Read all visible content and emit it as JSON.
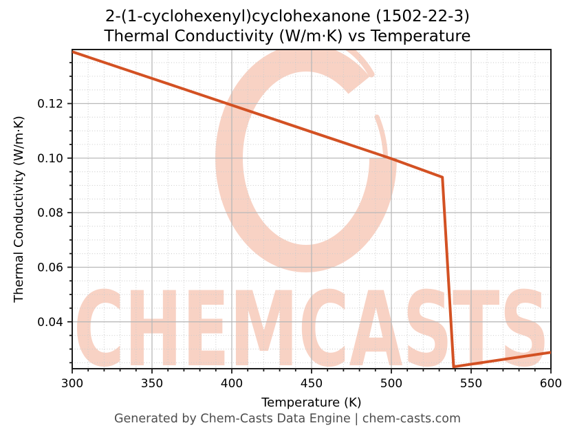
{
  "chart": {
    "title_line1": "2-(1-cyclohexenyl)cyclohexanone (1502-22-3)",
    "title_line2": "Thermal Conductivity (W/m·K) vs Temperature",
    "footer": "Generated by Chem-Casts Data Engine | chem-casts.com",
    "watermark_text": "CHEMCASTS"
  },
  "chart_data": {
    "type": "line",
    "title": [
      "2-(1-cyclohexenyl)cyclohexanone (1502-22-3)",
      "Thermal Conductivity (W/m·K) vs Temperature"
    ],
    "xlabel": "Temperature (K)",
    "ylabel": "Thermal Conductivity (W/m·K)",
    "xlim": [
      300,
      600
    ],
    "ylim": [
      0.0228,
      0.1398
    ],
    "x_major_ticks": [
      300,
      350,
      400,
      450,
      500,
      550,
      600
    ],
    "x_minor_step": 10,
    "y_major_ticks": [
      0.04,
      0.06,
      0.08,
      0.1,
      0.12
    ],
    "y_minor_step": 0.005,
    "grid": {
      "major": "solid",
      "minor": "dotted"
    },
    "legend": "none",
    "series": [
      {
        "name": "Thermal Conductivity",
        "color": "#d35123",
        "points": [
          [
            300,
            0.139
          ],
          [
            350,
            0.1292
          ],
          [
            400,
            0.1194
          ],
          [
            450,
            0.1096
          ],
          [
            500,
            0.0998
          ],
          [
            532,
            0.093
          ],
          [
            539,
            0.0235
          ],
          [
            600,
            0.0288
          ]
        ]
      }
    ]
  },
  "colors": {
    "line": "#d35123",
    "watermark": "#f8d2c4",
    "grid_major": "#b8b8b8",
    "grid_minor": "#cccccc",
    "spine": "#1a1a1a",
    "tick_label": "#000000",
    "footer_text": "#4d4d4d"
  }
}
